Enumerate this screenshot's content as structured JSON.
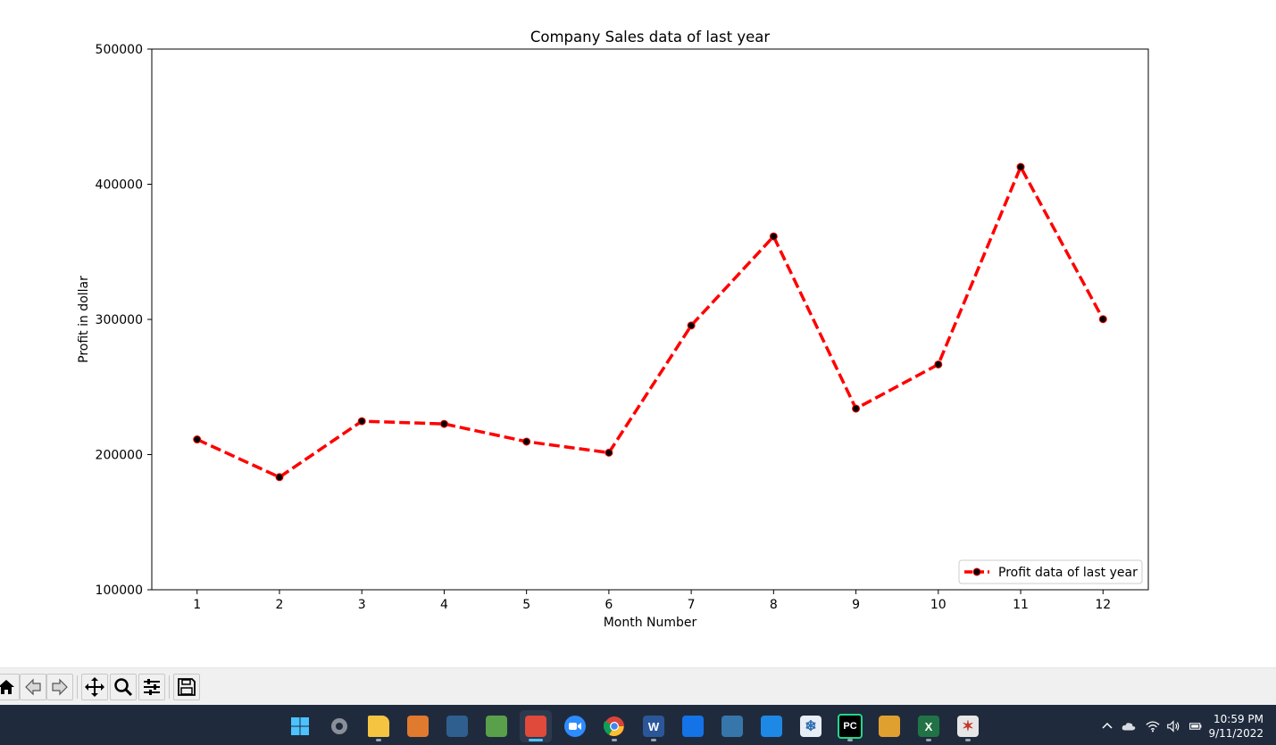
{
  "chart_data": {
    "type": "line",
    "title": "Company Sales data of last year",
    "xlabel": "Month Number",
    "ylabel": "Profit in dollar",
    "x": [
      1,
      2,
      3,
      4,
      5,
      6,
      7,
      8,
      9,
      10,
      11,
      12
    ],
    "x_tick_labels": [
      "1",
      "2",
      "3",
      "4",
      "5",
      "6",
      "7",
      "8",
      "9",
      "10",
      "11",
      "12"
    ],
    "y_ticks": [
      100000,
      200000,
      300000,
      400000,
      500000
    ],
    "y_tick_labels": [
      "100000",
      "200000",
      "300000",
      "400000",
      "500000"
    ],
    "ylim": [
      100000,
      500000
    ],
    "xlim": [
      0.45,
      12.55
    ],
    "grid": false,
    "legend_position": "lower-right",
    "series": [
      {
        "name": "Profit data of last year",
        "values": [
          211200,
          183300,
          224700,
          222700,
          209600,
          201400,
          295500,
          361400,
          234000,
          266700,
          412800,
          300200
        ],
        "color": "#ff0000",
        "line_style": "dashed",
        "marker_color": "#000000"
      }
    ]
  },
  "toolbar": {
    "buttons": [
      {
        "name": "home",
        "icon": "home-icon"
      },
      {
        "name": "back",
        "icon": "back-arrow-icon"
      },
      {
        "name": "forward",
        "icon": "forward-arrow-icon"
      },
      {
        "name": "pan",
        "icon": "pan-move-icon"
      },
      {
        "name": "zoom",
        "icon": "zoom-magnifier-icon"
      },
      {
        "name": "configure-subplots",
        "icon": "sliders-icon"
      },
      {
        "name": "save",
        "icon": "save-floppy-icon"
      }
    ]
  },
  "taskbar": {
    "apps": [
      {
        "name": "start",
        "icon": "windows-start-icon",
        "color": "#4cc2ff"
      },
      {
        "name": "settings",
        "icon": "gear-icon",
        "color": "#8a8f99"
      },
      {
        "name": "file-explorer",
        "icon": "folder-icon",
        "color": "#f5c542"
      },
      {
        "name": "matlab",
        "icon": "matlab-icon",
        "color": "#e07a2e"
      },
      {
        "name": "mysql-workbench",
        "icon": "dolphin-icon",
        "color": "#2f5f8f"
      },
      {
        "name": "notepad",
        "icon": "notepad-icon",
        "color": "#5aa04a"
      },
      {
        "name": "snipping-tool",
        "icon": "scissors-icon",
        "color": "#e04a3a"
      },
      {
        "name": "zoom",
        "icon": "video-camera-icon",
        "color": "#2d8cff"
      },
      {
        "name": "chrome",
        "icon": "chrome-icon",
        "color": "#db4437"
      },
      {
        "name": "word",
        "icon": "word-icon",
        "color": "#2b579a",
        "letter": "W"
      },
      {
        "name": "store",
        "icon": "store-bag-icon",
        "color": "#1473e6"
      },
      {
        "name": "python",
        "icon": "python-icon",
        "color": "#3776ab"
      },
      {
        "name": "sync",
        "icon": "sync-icon",
        "color": "#1e88e5"
      },
      {
        "name": "snowflake",
        "icon": "snowflake-icon",
        "color": "#e8eef5"
      },
      {
        "name": "pycharm",
        "icon": "pycharm-icon",
        "color": "#21d789",
        "letter": "PC"
      },
      {
        "name": "home-lock",
        "icon": "house-lock-icon",
        "color": "#e0a030"
      },
      {
        "name": "excel",
        "icon": "excel-icon",
        "color": "#217346",
        "letter": "X"
      },
      {
        "name": "paint-tools",
        "icon": "paint-brush-icon",
        "color": "#e6e6e6"
      }
    ],
    "tray": [
      "chevron-up-icon",
      "cloud-icon",
      "wifi-icon",
      "speaker-icon",
      "battery-icon"
    ],
    "time": "10:59 PM",
    "date": "9/11/2022"
  }
}
